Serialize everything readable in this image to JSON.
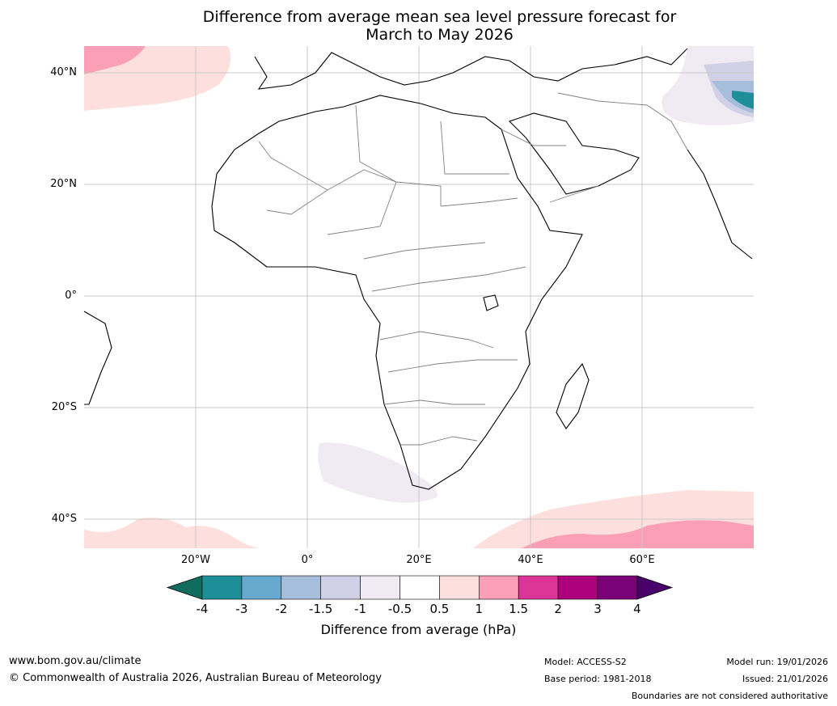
{
  "title_line1": "Difference from average mean sea level pressure forecast for",
  "title_line2": "March to May 2026",
  "lat_labels": [
    "40°N",
    "20°N",
    "0°",
    "20°S",
    "40°S"
  ],
  "lon_labels": [
    "20°W",
    "0°",
    "20°E",
    "40°E",
    "60°E"
  ],
  "colorbar": {
    "ticks": [
      "-4",
      "-3",
      "-2",
      "-1.5",
      "-1",
      "-0.5",
      "0.5",
      "1",
      "1.5",
      "2",
      "3",
      "4"
    ],
    "colors": [
      "#116b5e",
      "#1e8f99",
      "#67a9cf",
      "#a6bddb",
      "#d0d1e6",
      "#f0ebf3",
      "#ffffff",
      "#fde0dd",
      "#fa9fb5",
      "#dd3497",
      "#ae017e",
      "#7a0177",
      "#49006a"
    ],
    "label": "Difference from average (hPa)"
  },
  "footer": {
    "url": "www.bom.gov.au/climate",
    "copyright": "© Commonwealth of Australia 2026, Australian Bureau of Meteorology",
    "model": "Model: ACCESS-S2",
    "base_period": "Base period: 1981-2018",
    "model_run": "Model run: 19/01/2026",
    "issued": "Issued: 21/01/2026",
    "disclaimer": "Boundaries are not considered authoritative"
  }
}
